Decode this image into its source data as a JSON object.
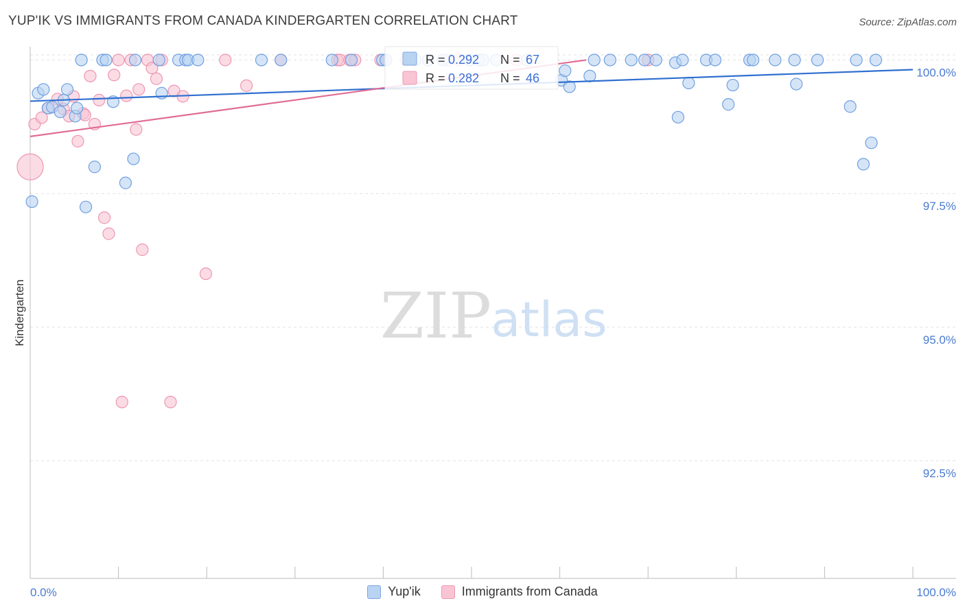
{
  "header": {
    "title": "YUP'IK VS IMMIGRANTS FROM CANADA KINDERGARTEN CORRELATION CHART",
    "source": "Source: ZipAtlas.com"
  },
  "watermark": {
    "zip": "ZIP",
    "atlas": "atlas"
  },
  "legend_box": {
    "rows": [
      {
        "r_label": "R = ",
        "r_value": "0.292",
        "n_label": "N = ",
        "n_value": "67"
      },
      {
        "r_label": "R = ",
        "r_value": "0.282",
        "n_label": "N = ",
        "n_value": "46"
      }
    ]
  },
  "bottom_legend": {
    "series1": "Yup'ik",
    "series2": "Immigrants from Canada"
  },
  "chart_data": {
    "type": "scatter",
    "title": "YUP'IK VS IMMIGRANTS FROM CANADA KINDERGARTEN CORRELATION CHART",
    "xlabel": "",
    "ylabel": "Kindergarten",
    "xlim": [
      0,
      100
    ],
    "ylim": [
      90.3,
      100.25
    ],
    "x_tick_labels": [
      "0.0%",
      "100.0%"
    ],
    "y_ticks": [
      {
        "value": 100.0,
        "label": "100.0%"
      },
      {
        "value": 97.5,
        "label": "97.5%"
      },
      {
        "value": 95.0,
        "label": "95.0%"
      },
      {
        "value": 92.5,
        "label": "92.5%"
      }
    ],
    "colors": {
      "series1": "#4a86d8",
      "series2": "#e8759c",
      "tick": "#4a7bd0"
    },
    "series": [
      {
        "name": "Yup'ik",
        "trend": {
          "x": [
            0,
            100
          ],
          "y": [
            99.23,
            99.82
          ]
        },
        "points": [
          [
            0.2,
            97.35
          ],
          [
            0.9,
            99.38
          ],
          [
            1.5,
            99.45
          ],
          [
            2.0,
            99.1
          ],
          [
            2.5,
            99.12
          ],
          [
            3.4,
            99.03
          ],
          [
            3.8,
            99.25
          ],
          [
            4.2,
            99.45
          ],
          [
            5.1,
            98.95
          ],
          [
            5.3,
            99.1
          ],
          [
            5.8,
            100.0
          ],
          [
            6.3,
            97.25
          ],
          [
            7.3,
            98.0
          ],
          [
            8.2,
            100.0
          ],
          [
            8.6,
            100.0
          ],
          [
            9.4,
            99.22
          ],
          [
            10.8,
            97.7
          ],
          [
            11.7,
            98.15
          ],
          [
            11.9,
            100.0
          ],
          [
            14.6,
            100.0
          ],
          [
            14.9,
            99.38
          ],
          [
            16.8,
            100.0
          ],
          [
            17.6,
            100.0
          ],
          [
            17.9,
            100.0
          ],
          [
            19.0,
            100.0
          ],
          [
            26.2,
            100.0
          ],
          [
            28.4,
            100.0
          ],
          [
            34.2,
            100.0
          ],
          [
            36.4,
            100.0
          ],
          [
            39.9,
            100.0
          ],
          [
            40.3,
            100.0
          ],
          [
            43.6,
            100.0
          ],
          [
            45.1,
            100.0
          ],
          [
            46.8,
            100.0
          ],
          [
            49.8,
            100.0
          ],
          [
            50.8,
            100.0
          ],
          [
            51.3,
            100.0
          ],
          [
            52.8,
            100.0
          ],
          [
            56.3,
            100.0
          ],
          [
            60.2,
            99.62
          ],
          [
            60.6,
            99.8
          ],
          [
            61.1,
            99.5
          ],
          [
            63.4,
            99.7
          ],
          [
            63.9,
            100.0
          ],
          [
            65.7,
            100.0
          ],
          [
            68.1,
            100.0
          ],
          [
            69.6,
            100.0
          ],
          [
            70.9,
            100.0
          ],
          [
            73.1,
            99.95
          ],
          [
            73.4,
            98.93
          ],
          [
            73.9,
            100.0
          ],
          [
            74.6,
            99.57
          ],
          [
            76.6,
            100.0
          ],
          [
            77.6,
            100.0
          ],
          [
            79.1,
            99.17
          ],
          [
            79.6,
            99.53
          ],
          [
            81.5,
            100.0
          ],
          [
            81.9,
            100.0
          ],
          [
            84.4,
            100.0
          ],
          [
            86.6,
            100.0
          ],
          [
            86.8,
            99.55
          ],
          [
            89.2,
            100.0
          ],
          [
            92.9,
            99.13
          ],
          [
            93.6,
            100.0
          ],
          [
            94.4,
            98.05
          ],
          [
            95.3,
            98.45
          ],
          [
            95.8,
            100.0
          ]
        ]
      },
      {
        "name": "Immigrants from Canada",
        "trend": {
          "x": [
            0,
            63.0
          ],
          "y": [
            98.57,
            100.0
          ]
        },
        "points": [
          [
            0.0,
            98.0
          ],
          [
            0.5,
            98.8
          ],
          [
            1.3,
            98.92
          ],
          [
            2.1,
            99.1
          ],
          [
            3.1,
            99.27
          ],
          [
            3.8,
            99.08
          ],
          [
            4.4,
            98.95
          ],
          [
            4.9,
            99.32
          ],
          [
            5.4,
            98.48
          ],
          [
            6.0,
            99.0
          ],
          [
            6.2,
            98.97
          ],
          [
            6.8,
            99.7
          ],
          [
            7.3,
            98.8
          ],
          [
            7.8,
            99.25
          ],
          [
            8.4,
            97.05
          ],
          [
            8.9,
            96.75
          ],
          [
            9.5,
            99.72
          ],
          [
            10.0,
            100.0
          ],
          [
            10.4,
            93.6
          ],
          [
            10.9,
            99.33
          ],
          [
            11.4,
            100.0
          ],
          [
            12.0,
            98.7
          ],
          [
            12.3,
            99.45
          ],
          [
            12.7,
            96.45
          ],
          [
            13.3,
            100.0
          ],
          [
            13.8,
            99.85
          ],
          [
            14.3,
            99.65
          ],
          [
            14.9,
            100.0
          ],
          [
            15.9,
            93.6
          ],
          [
            16.3,
            99.42
          ],
          [
            17.3,
            99.32
          ],
          [
            19.9,
            96.0
          ],
          [
            22.1,
            100.0
          ],
          [
            24.5,
            99.52
          ],
          [
            28.4,
            100.0
          ],
          [
            34.8,
            100.0
          ],
          [
            35.1,
            100.0
          ],
          [
            36.2,
            100.0
          ],
          [
            36.8,
            100.0
          ],
          [
            39.7,
            100.0
          ],
          [
            40.3,
            100.0
          ],
          [
            42.6,
            100.0
          ],
          [
            47.4,
            100.0
          ],
          [
            48.6,
            100.0
          ],
          [
            55.1,
            100.0
          ],
          [
            70.0,
            100.0
          ]
        ]
      }
    ]
  }
}
